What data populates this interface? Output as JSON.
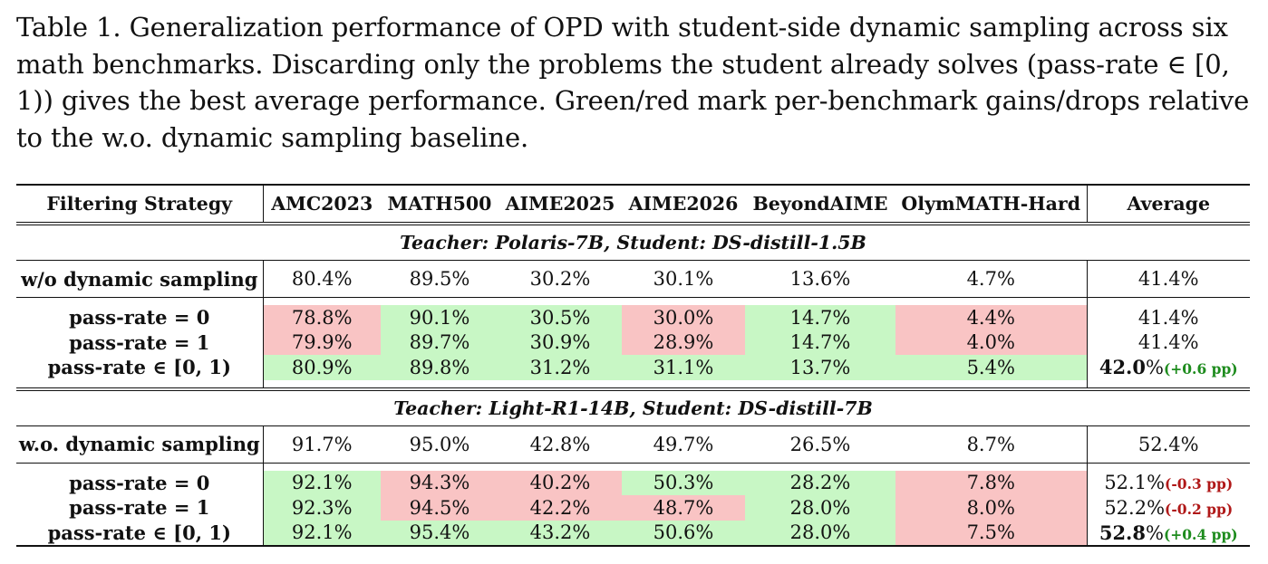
{
  "caption": "Table 1. Generalization performance of OPD with student-side dynamic sampling across six math benchmarks. Discarding only the problems the student already solves (pass-rate ∈ [0, 1)) gives the best average performance. Green/red mark per-benchmark gains/drops relative to the w.o. dynamic sampling baseline.",
  "headers": [
    "Filtering Strategy",
    "AMC2023",
    "MATH500",
    "AIME2025",
    "AIME2026",
    "BeyondAIME",
    "OlymMATH-Hard",
    "Average"
  ],
  "sections": [
    {
      "title": "Teacher: Polaris-7B, Student: DS-distill-1.5B",
      "baseline": {
        "label": "w/o dynamic sampling",
        "cells": [
          "80.4%",
          "89.5%",
          "30.2%",
          "30.1%",
          "13.6%",
          "4.7%"
        ],
        "avg": "41.4%"
      },
      "rows": [
        {
          "label": "pass-rate = 0",
          "cells": [
            "78.8%",
            "90.1%",
            "30.5%",
            "30.0%",
            "14.7%",
            "4.4%"
          ],
          "avg": "41.4%",
          "delta": ""
        },
        {
          "label": "pass-rate = 1",
          "cells": [
            "79.9%",
            "89.7%",
            "30.9%",
            "28.9%",
            "14.7%",
            "4.0%"
          ],
          "avg": "41.4%",
          "delta": ""
        },
        {
          "label": "pass-rate ∈ [0, 1)",
          "cells": [
            "80.9%",
            "89.8%",
            "31.2%",
            "31.1%",
            "13.7%",
            "5.4%"
          ],
          "avg_bold": "42.0",
          "avg_rest": "%",
          "delta": "(+0.6 pp)"
        }
      ]
    },
    {
      "title": "Teacher: Light-R1-14B, Student: DS-distill-7B",
      "baseline": {
        "label": "w.o. dynamic sampling",
        "cells": [
          "91.7%",
          "95.0%",
          "42.8%",
          "49.7%",
          "26.5%",
          "8.7%"
        ],
        "avg": "52.4%"
      },
      "rows": [
        {
          "label": "pass-rate = 0",
          "cells": [
            "92.1%",
            "94.3%",
            "40.2%",
            "50.3%",
            "28.2%",
            "7.8%"
          ],
          "avg": "52.1%",
          "delta": "(-0.3 pp)"
        },
        {
          "label": "pass-rate = 1",
          "cells": [
            "92.3%",
            "94.5%",
            "42.2%",
            "48.7%",
            "28.0%",
            "8.0%"
          ],
          "avg": "52.2%",
          "delta": "(-0.2 pp)"
        },
        {
          "label": "pass-rate ∈ [0, 1)",
          "cells": [
            "92.1%",
            "95.4%",
            "43.2%",
            "50.6%",
            "28.0%",
            "7.5%"
          ],
          "avg_bold": "52.8",
          "avg_rest": "%",
          "delta": "(+0.4 pp)"
        }
      ]
    }
  ],
  "colors": {
    "gain": "#c8f7c5",
    "drop": "#f9c4c4",
    "delta_up": "#1e8c1e",
    "delta_down": "#b01818"
  }
}
